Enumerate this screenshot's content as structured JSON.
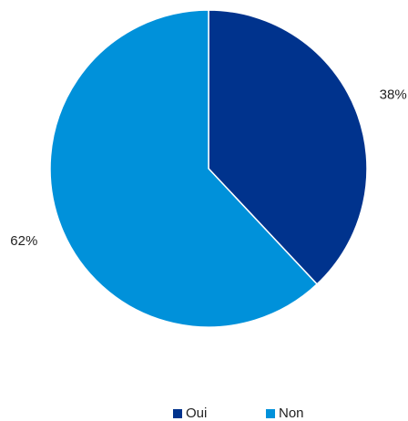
{
  "chart_data": {
    "type": "pie",
    "categories": [
      "Oui",
      "Non"
    ],
    "values": [
      38,
      62
    ],
    "value_labels": [
      "38%",
      "62%"
    ],
    "colors": [
      "#00338d",
      "#0091da"
    ],
    "legend": "bottom"
  }
}
